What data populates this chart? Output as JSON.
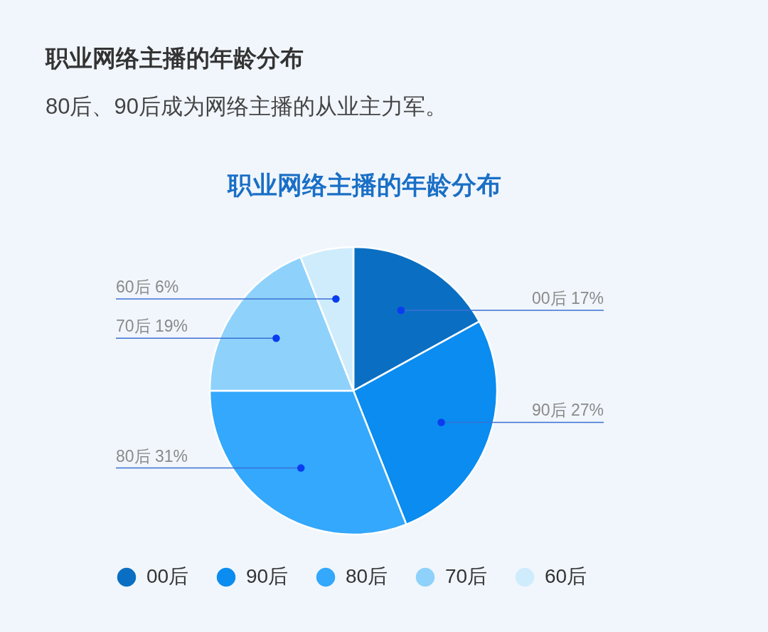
{
  "chart_data": {
    "type": "pie",
    "title": "职业网络主播的年龄分布",
    "subtitle": "80后、90后成为网络主播的从业主力军。",
    "annotations": [
      "职业网络主播的年龄分布"
    ],
    "categories": [
      "00后",
      "90后",
      "80后",
      "70后",
      "60后"
    ],
    "values": [
      17,
      27,
      31,
      19,
      6
    ],
    "colors": [
      "#0a6fc2",
      "#0a8cf0",
      "#33a8fc",
      "#8ed2fb",
      "#cfecfc"
    ],
    "value_labels": [
      "00后 17%",
      "90后 27%",
      "80后 31%",
      "70后 19%",
      "60后 6%"
    ],
    "legend": "bottom"
  }
}
